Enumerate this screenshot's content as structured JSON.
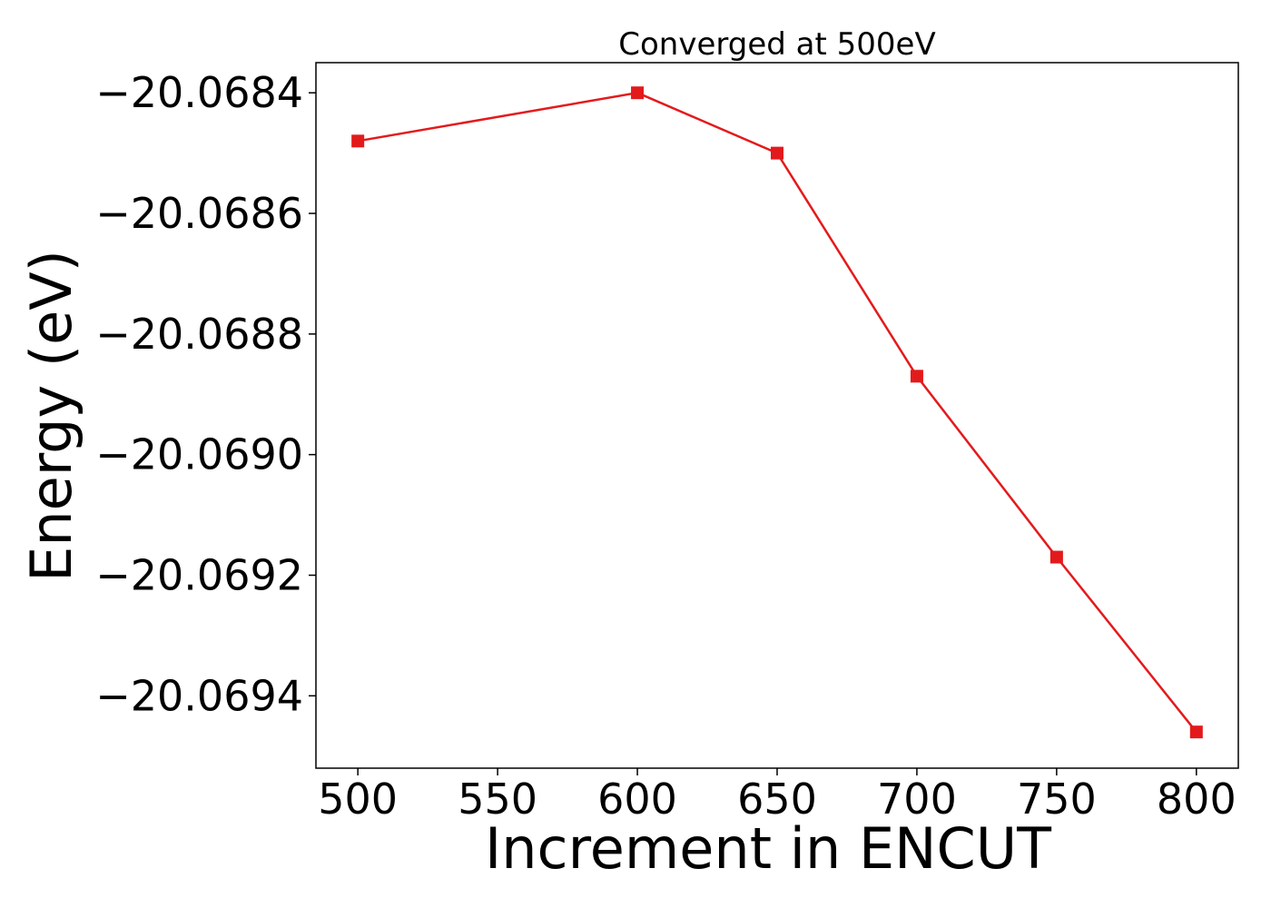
{
  "chart_data": {
    "type": "line",
    "title": "Converged at 500eV",
    "xlabel": "Increment in ENCUT",
    "ylabel": "Energy (eV)",
    "x": [
      500,
      600,
      650,
      700,
      750,
      800
    ],
    "series": [
      {
        "values": [
          -20.06848,
          -20.0684,
          -20.0685,
          -20.06887,
          -20.06917,
          -20.06946
        ],
        "color": "#e31a1c",
        "marker": "square"
      }
    ],
    "xlim": [
      485,
      815
    ],
    "ylim": [
      -20.06952,
      -20.06835
    ],
    "xticks": [
      500,
      550,
      600,
      650,
      700,
      750,
      800
    ],
    "yticks": [
      -20.0684,
      -20.0686,
      -20.0688,
      -20.069,
      -20.0692,
      -20.0694
    ],
    "xtick_labels": [
      "500",
      "550",
      "600",
      "650",
      "700",
      "750",
      "800"
    ],
    "ytick_labels": [
      "−20.0684",
      "−20.0686",
      "−20.0688",
      "−20.0690",
      "−20.0692",
      "−20.0694"
    ],
    "grid": false,
    "legend": "none"
  }
}
